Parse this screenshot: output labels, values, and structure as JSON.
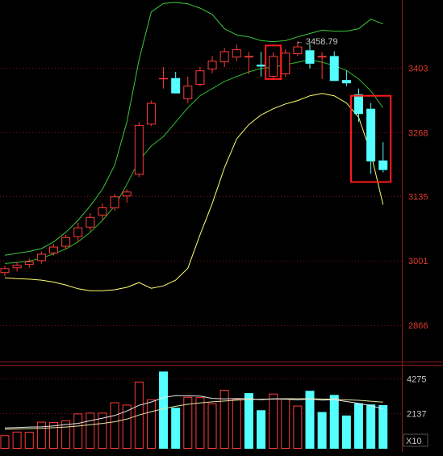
{
  "chart_data": {
    "type": "candlestick",
    "price_panel": {
      "y_ticks": [
        "3403",
        "3268",
        "3135",
        "3001",
        "2866"
      ],
      "y_tick_values": [
        3403,
        3268,
        3135,
        3001,
        2866
      ],
      "ylim": [
        2790,
        3545
      ],
      "max_label": "3458.79",
      "max_label_value": 3458.79,
      "candles": [
        {
          "o": 2975,
          "h": 2990,
          "l": 2968,
          "c": 2985
        },
        {
          "o": 2985,
          "h": 2998,
          "l": 2978,
          "c": 2992
        },
        {
          "o": 2992,
          "h": 3005,
          "l": 2986,
          "c": 2999
        },
        {
          "o": 3000,
          "h": 3020,
          "l": 2995,
          "c": 3015
        },
        {
          "o": 3016,
          "h": 3035,
          "l": 3012,
          "c": 3030
        },
        {
          "o": 3030,
          "h": 3055,
          "l": 3025,
          "c": 3050
        },
        {
          "o": 3050,
          "h": 3080,
          "l": 3040,
          "c": 3070
        },
        {
          "o": 3070,
          "h": 3100,
          "l": 3062,
          "c": 3092
        },
        {
          "o": 3095,
          "h": 3120,
          "l": 3085,
          "c": 3112
        },
        {
          "o": 3110,
          "h": 3140,
          "l": 3105,
          "c": 3135
        },
        {
          "o": 3135,
          "h": 3150,
          "l": 3122,
          "c": 3145
        },
        {
          "o": 3180,
          "h": 3290,
          "l": 3175,
          "c": 3284
        },
        {
          "o": 3285,
          "h": 3335,
          "l": 3282,
          "c": 3330
        },
        {
          "o": 3380,
          "h": 3405,
          "l": 3360,
          "c": 3382
        },
        {
          "o": 3382,
          "h": 3395,
          "l": 3352,
          "c": 3350
        },
        {
          "o": 3338,
          "h": 3385,
          "l": 3330,
          "c": 3366
        },
        {
          "o": 3368,
          "h": 3405,
          "l": 3365,
          "c": 3398
        },
        {
          "o": 3400,
          "h": 3428,
          "l": 3392,
          "c": 3418
        },
        {
          "o": 3415,
          "h": 3445,
          "l": 3405,
          "c": 3438
        },
        {
          "o": 3425,
          "h": 3452,
          "l": 3418,
          "c": 3442
        },
        {
          "o": 3425,
          "h": 3437,
          "l": 3390,
          "c": 3428
        },
        {
          "o": 3410,
          "h": 3437,
          "l": 3385,
          "c": 3406
        },
        {
          "o": 3385,
          "h": 3436,
          "l": 3378,
          "c": 3428
        },
        {
          "o": 3390,
          "h": 3442,
          "l": 3385,
          "c": 3435
        },
        {
          "o": 3432,
          "h": 3458.79,
          "l": 3428,
          "c": 3448
        },
        {
          "o": 3440,
          "h": 3452,
          "l": 3402,
          "c": 3412
        },
        {
          "o": 3425,
          "h": 3436,
          "l": 3380,
          "c": 3428
        },
        {
          "o": 3428,
          "h": 3438,
          "l": 3378,
          "c": 3376
        },
        {
          "o": 3378,
          "h": 3398,
          "l": 3365,
          "c": 3371
        },
        {
          "o": 3348,
          "h": 3360,
          "l": 3290,
          "c": 3307
        },
        {
          "o": 3318,
          "h": 3330,
          "l": 3182,
          "c": 3208
        },
        {
          "o": 3210,
          "h": 3248,
          "l": 3185,
          "c": 3190
        }
      ],
      "upper_band": [
        3012,
        3016,
        3020,
        3026,
        3040,
        3060,
        3085,
        3115,
        3150,
        3200,
        3290,
        3420,
        3520,
        3538,
        3540,
        3537,
        3528,
        3515,
        3485,
        3472,
        3468,
        3460,
        3458,
        3460,
        3468,
        3475,
        3482,
        3480,
        3480,
        3485,
        3505,
        3495
      ],
      "middle_band": [
        2995,
        2997,
        3000,
        3006,
        3015,
        3025,
        3040,
        3060,
        3085,
        3115,
        3160,
        3210,
        3240,
        3260,
        3290,
        3320,
        3345,
        3360,
        3375,
        3385,
        3395,
        3402,
        3405,
        3410,
        3415,
        3420,
        3415,
        3408,
        3398,
        3380,
        3355,
        3320
      ],
      "lower_band": [
        2965,
        2963,
        2962,
        2960,
        2956,
        2950,
        2942,
        2938,
        2938,
        2940,
        2945,
        2955,
        2943,
        2948,
        2960,
        2985,
        3055,
        3120,
        3195,
        3255,
        3285,
        3305,
        3318,
        3328,
        3335,
        3345,
        3350,
        3345,
        3330,
        3300,
        3225,
        3118
      ],
      "highlight_boxes": [
        {
          "candle_from": 22,
          "candle_to": 22,
          "price_low": 3380,
          "price_high": 3450
        },
        {
          "candle_from": 29,
          "candle_to": 31,
          "price_low": 3165,
          "price_high": 3345
        }
      ]
    },
    "volume_panel": {
      "y_ticks": [
        "4275",
        "2137"
      ],
      "y_tick_values": [
        4275,
        2137
      ],
      "unit": "X10",
      "ylim": [
        0,
        5100
      ],
      "volumes": [
        {
          "v": 820,
          "up": true
        },
        {
          "v": 1040,
          "up": true
        },
        {
          "v": 1030,
          "up": true
        },
        {
          "v": 1640,
          "up": true
        },
        {
          "v": 1620,
          "up": true
        },
        {
          "v": 1730,
          "up": true
        },
        {
          "v": 2140,
          "up": true
        },
        {
          "v": 2190,
          "up": true
        },
        {
          "v": 2190,
          "up": true
        },
        {
          "v": 2820,
          "up": true
        },
        {
          "v": 2680,
          "up": true
        },
        {
          "v": 4080,
          "up": true
        },
        {
          "v": 3000,
          "up": true
        },
        {
          "v": 4690,
          "up": false
        },
        {
          "v": 2490,
          "up": false
        },
        {
          "v": 3150,
          "up": true
        },
        {
          "v": 3130,
          "up": true
        },
        {
          "v": 2760,
          "up": true
        },
        {
          "v": 3580,
          "up": true
        },
        {
          "v": 3010,
          "up": true
        },
        {
          "v": 3380,
          "up": false
        },
        {
          "v": 2340,
          "up": false
        },
        {
          "v": 3350,
          "up": true
        },
        {
          "v": 3040,
          "up": true
        },
        {
          "v": 2620,
          "up": true
        },
        {
          "v": 3520,
          "up": false
        },
        {
          "v": 2230,
          "up": false
        },
        {
          "v": 3270,
          "up": false
        },
        {
          "v": 2020,
          "up": false
        },
        {
          "v": 2760,
          "up": false
        },
        {
          "v": 2690,
          "up": false
        },
        {
          "v": 2650,
          "up": false
        }
      ],
      "ma_short": [
        1260,
        1290,
        1320,
        1330,
        1390,
        1470,
        1540,
        1700,
        1860,
        2020,
        2290,
        2640,
        2840,
        3110,
        3230,
        3210,
        3200,
        3060,
        3030,
        3050,
        3040,
        2980,
        3030,
        3010,
        2970,
        3020,
        2950,
        2980,
        2870,
        2760,
        2620,
        2420
      ],
      "ma_long": [
        1180,
        1200,
        1220,
        1240,
        1280,
        1320,
        1380,
        1460,
        1540,
        1640,
        1800,
        2050,
        2250,
        2430,
        2580,
        2700,
        2780,
        2850,
        2900,
        2950,
        2990,
        3010,
        3030,
        3040,
        3040,
        3040,
        3020,
        3000,
        2970,
        2940,
        2890,
        2830
      ]
    },
    "colors": {
      "background": "#000000",
      "up": "#ff3b3b",
      "down": "#54ffff",
      "grid": "#7a1515",
      "panel_border": "#8a1a1a",
      "tick_label": "#e03a2c",
      "vol_tick_label": "#c8c8c8",
      "upper_band": "#3ec83e",
      "middle_band": "#2eb82e",
      "lower_band": "#ffff70",
      "ma_short": "#e8e8e8",
      "ma_long": "#e6e6a0",
      "highlight": "#ff1a1a",
      "max_label": "#c8c8c8"
    }
  }
}
